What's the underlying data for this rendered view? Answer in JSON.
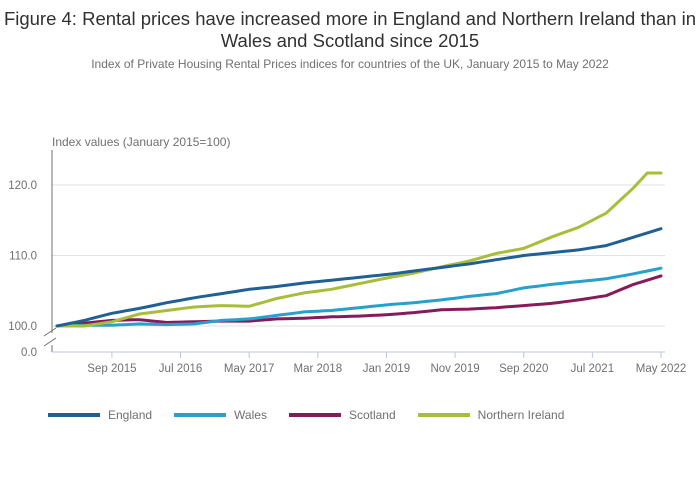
{
  "chart_data": {
    "type": "line",
    "title": "Figure 4: Rental prices have increased more in England and Northern Ireland than in Wales and Scotland since 2015",
    "subtitle": "Index of Private Housing Rental Prices indices for countries of the UK, January 2015 to May 2022",
    "ylabel": "Index values (January 2015=100)",
    "xlabel": "",
    "x_start": "Jan 2015",
    "x_end": "May 2022",
    "x_months": 89,
    "y_ticks": [
      {
        "value": 0,
        "label": "0.0"
      },
      {
        "value": 100,
        "label": "100.0"
      },
      {
        "value": 110,
        "label": "110.0"
      },
      {
        "value": 120,
        "label": "120.0"
      }
    ],
    "y_axis_break": [
      0,
      100
    ],
    "ylim": [
      100,
      122.5
    ],
    "x_ticks": [
      {
        "month_index": 8,
        "label": "Sep 2015"
      },
      {
        "month_index": 18,
        "label": "Jul 2016"
      },
      {
        "month_index": 28,
        "label": "May 2017"
      },
      {
        "month_index": 38,
        "label": "Mar 2018"
      },
      {
        "month_index": 48,
        "label": "Jan 2019"
      },
      {
        "month_index": 58,
        "label": "Nov 2019"
      },
      {
        "month_index": 68,
        "label": "Sep 2020"
      },
      {
        "month_index": 78,
        "label": "Jul 2021"
      },
      {
        "month_index": 88,
        "label": "May 2022"
      }
    ],
    "grid": true,
    "legend_position": "bottom-left",
    "series": [
      {
        "name": "England",
        "color": "#206095",
        "anchors": [
          [
            0,
            100.0
          ],
          [
            4,
            100.8
          ],
          [
            8,
            101.8
          ],
          [
            12,
            102.5
          ],
          [
            16,
            103.3
          ],
          [
            20,
            104.0
          ],
          [
            24,
            104.6
          ],
          [
            28,
            105.2
          ],
          [
            32,
            105.6
          ],
          [
            36,
            106.1
          ],
          [
            40,
            106.5
          ],
          [
            44,
            106.9
          ],
          [
            48,
            107.3
          ],
          [
            52,
            107.8
          ],
          [
            56,
            108.3
          ],
          [
            60,
            108.8
          ],
          [
            64,
            109.4
          ],
          [
            68,
            110.0
          ],
          [
            72,
            110.4
          ],
          [
            76,
            110.8
          ],
          [
            80,
            111.4
          ],
          [
            84,
            112.6
          ],
          [
            88,
            113.8
          ]
        ]
      },
      {
        "name": "Wales",
        "color": "#27a0cc",
        "anchors": [
          [
            0,
            100.0
          ],
          [
            4,
            100.1
          ],
          [
            8,
            100.1
          ],
          [
            12,
            100.3
          ],
          [
            16,
            100.2
          ],
          [
            20,
            100.3
          ],
          [
            24,
            100.8
          ],
          [
            28,
            101.0
          ],
          [
            32,
            101.5
          ],
          [
            36,
            102.0
          ],
          [
            40,
            102.2
          ],
          [
            44,
            102.6
          ],
          [
            48,
            103.0
          ],
          [
            52,
            103.3
          ],
          [
            56,
            103.7
          ],
          [
            60,
            104.2
          ],
          [
            64,
            104.6
          ],
          [
            68,
            105.4
          ],
          [
            72,
            105.9
          ],
          [
            76,
            106.3
          ],
          [
            80,
            106.7
          ],
          [
            84,
            107.4
          ],
          [
            88,
            108.2
          ]
        ]
      },
      {
        "name": "Scotland",
        "color": "#871a5b",
        "anchors": [
          [
            0,
            100.0
          ],
          [
            4,
            100.4
          ],
          [
            8,
            100.8
          ],
          [
            12,
            100.9
          ],
          [
            16,
            100.5
          ],
          [
            20,
            100.6
          ],
          [
            24,
            100.7
          ],
          [
            28,
            100.7
          ],
          [
            32,
            101.0
          ],
          [
            36,
            101.1
          ],
          [
            40,
            101.3
          ],
          [
            44,
            101.4
          ],
          [
            48,
            101.6
          ],
          [
            52,
            101.9
          ],
          [
            56,
            102.3
          ],
          [
            60,
            102.4
          ],
          [
            64,
            102.6
          ],
          [
            68,
            102.9
          ],
          [
            72,
            103.2
          ],
          [
            76,
            103.7
          ],
          [
            80,
            104.3
          ],
          [
            84,
            105.9
          ],
          [
            88,
            107.1
          ]
        ]
      },
      {
        "name": "Northern Ireland",
        "color": "#a8bd3a",
        "anchors": [
          [
            0,
            100.0
          ],
          [
            4,
            100.0
          ],
          [
            8,
            100.6
          ],
          [
            12,
            101.7
          ],
          [
            16,
            102.2
          ],
          [
            20,
            102.7
          ],
          [
            24,
            102.9
          ],
          [
            28,
            102.8
          ],
          [
            32,
            103.9
          ],
          [
            36,
            104.7
          ],
          [
            40,
            105.2
          ],
          [
            44,
            106.0
          ],
          [
            48,
            106.8
          ],
          [
            52,
            107.5
          ],
          [
            56,
            108.4
          ],
          [
            60,
            109.2
          ],
          [
            64,
            110.3
          ],
          [
            68,
            111.0
          ],
          [
            72,
            112.6
          ],
          [
            76,
            114.0
          ],
          [
            80,
            116.0
          ],
          [
            84,
            119.6
          ],
          [
            86,
            121.7
          ],
          [
            88,
            121.7
          ]
        ]
      }
    ]
  }
}
